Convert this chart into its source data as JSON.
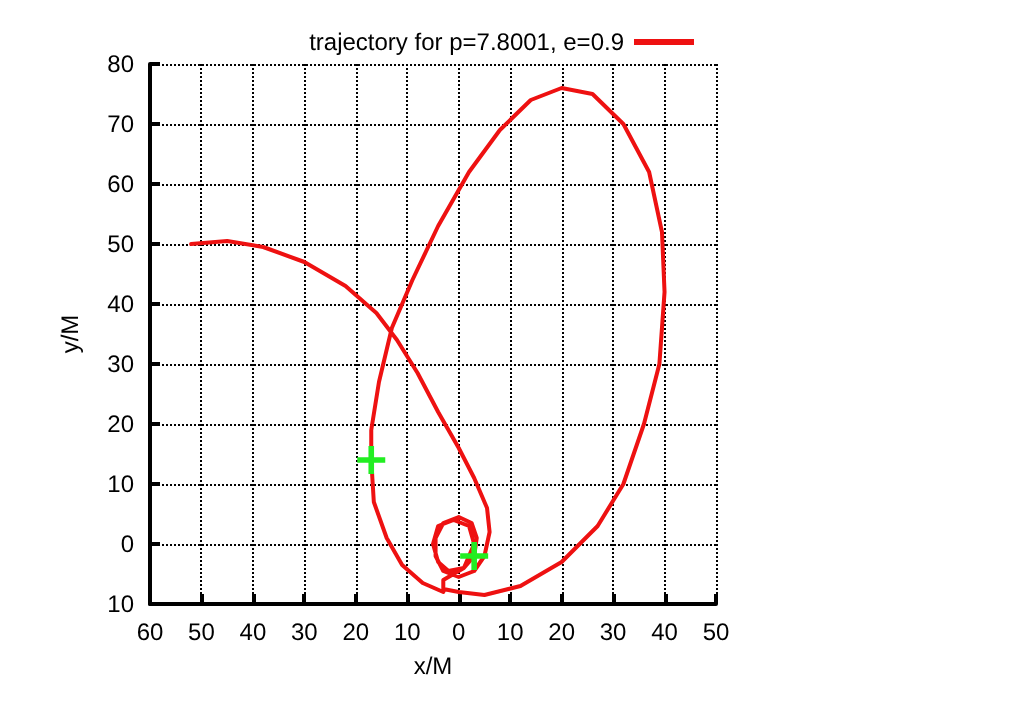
{
  "chart_data": {
    "type": "line",
    "xlabel": "x/M",
    "ylabel": "y/M",
    "xlim": [
      -60,
      50
    ],
    "ylim": [
      -10,
      80
    ],
    "xticks": [
      {
        "value": -60,
        "label": "60"
      },
      {
        "value": -50,
        "label": "50"
      },
      {
        "value": -40,
        "label": "40"
      },
      {
        "value": -30,
        "label": "30"
      },
      {
        "value": -20,
        "label": "20"
      },
      {
        "value": -10,
        "label": "10"
      },
      0,
      10,
      20,
      30,
      40,
      50
    ],
    "yticks": [
      {
        "value": -10,
        "label": "10"
      },
      0,
      10,
      20,
      30,
      40,
      50,
      60,
      70,
      80
    ],
    "grid": true,
    "legend": "top",
    "line_style": "solid",
    "series": [
      {
        "name": "trajectory for p=7.8001, e=0.9",
        "color": "#ee1111",
        "marker": "none",
        "x": [
          -52,
          -45,
          -38,
          -30,
          -22,
          -16,
          -12,
          -8,
          -4,
          0,
          3,
          5.5,
          6,
          5,
          3,
          0,
          -3,
          -4.5,
          -4.5,
          -3,
          0,
          2.5,
          3.5,
          3,
          1,
          -2,
          -4,
          -5,
          -4,
          -1,
          2,
          3,
          1,
          -3,
          -3,
          0,
          5,
          12,
          20,
          27,
          32,
          36,
          39,
          40,
          39.5,
          37,
          32,
          26,
          20,
          14,
          8,
          2,
          -4,
          -9,
          -13,
          -15.5,
          -17,
          -17,
          -16.5,
          -14,
          -11,
          -7,
          -3
        ],
        "values": [
          50,
          50.5,
          49.5,
          47,
          43,
          38.5,
          34,
          28.5,
          22,
          16,
          11,
          6,
          2,
          -2,
          -4.5,
          -5.5,
          -4.5,
          -2,
          1,
          3.5,
          4.5,
          3.5,
          1,
          -2,
          -4,
          -4.5,
          -3,
          0,
          3,
          4,
          3,
          0,
          -4,
          -6,
          -7.5,
          -8,
          -8.5,
          -7,
          -3,
          3,
          10,
          20,
          30,
          42,
          52,
          62,
          70,
          75,
          76,
          74,
          69,
          62,
          53,
          44,
          36,
          27,
          19,
          14,
          7,
          1,
          -3.5,
          -6.5,
          -8
        ]
      },
      {
        "type": "scatter",
        "color": "#22ee22",
        "marker": "cross",
        "x": [
          -17,
          3
        ],
        "values": [
          14,
          -2
        ]
      }
    ]
  }
}
